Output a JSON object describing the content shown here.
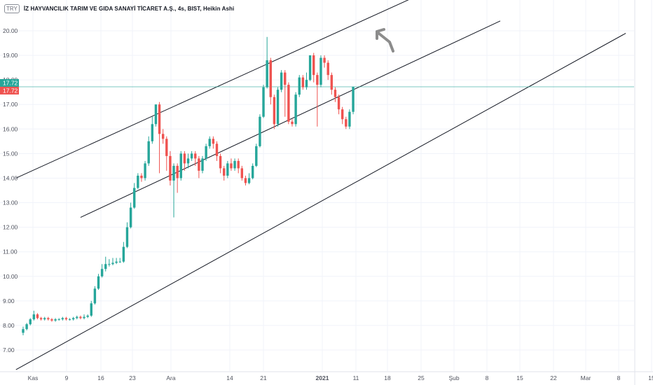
{
  "header": {
    "currency_badge": "TRY",
    "symbol_title": "İZ HAYVANCILIK TARIM VE GIDA SANAYİ TİCARET A.Ş., 4s, BIST, Heikin Ashi"
  },
  "colors": {
    "up": "#26a69a",
    "down": "#ef5350",
    "trendline": "#131722",
    "price_line": "#26a69a",
    "arrow": "#8c8c8c",
    "axis_text": "#50535e"
  },
  "price_tags": {
    "last": "17.72",
    "second": "17.72"
  },
  "chart_data": {
    "type": "candlestick",
    "style": "Heikin Ashi",
    "yscale": "linear",
    "ylim": [
      6.1,
      20.7
    ],
    "y_ticks": [
      "7.00",
      "8.00",
      "9.00",
      "10.00",
      "11.00",
      "12.00",
      "13.00",
      "14.00",
      "15.00",
      "16.00",
      "17.00",
      "18.00",
      "19.00",
      "20.00"
    ],
    "x_ticks": [
      "Kas",
      "9",
      "16",
      "23",
      "Ara",
      "14",
      "21",
      "2021",
      "11",
      "18",
      "25",
      "Şub",
      "8",
      "15",
      "22",
      "Mar",
      "8",
      "15"
    ],
    "last_price": 17.72,
    "candles": [
      [
        7.7,
        7.85,
        7.6,
        7.95
      ],
      [
        7.85,
        8.05,
        7.8,
        8.1
      ],
      [
        8.05,
        8.25,
        8.0,
        8.3
      ],
      [
        8.25,
        8.45,
        8.2,
        8.6
      ],
      [
        8.45,
        8.3,
        8.25,
        8.5
      ],
      [
        8.3,
        8.25,
        8.2,
        8.35
      ],
      [
        8.25,
        8.3,
        8.2,
        8.35
      ],
      [
        8.3,
        8.25,
        8.2,
        8.35
      ],
      [
        8.25,
        8.2,
        8.15,
        8.3
      ],
      [
        8.2,
        8.25,
        8.15,
        8.3
      ],
      [
        8.25,
        8.25,
        8.2,
        8.3
      ],
      [
        8.25,
        8.3,
        8.2,
        8.35
      ],
      [
        8.3,
        8.25,
        8.2,
        8.35
      ],
      [
        8.25,
        8.25,
        8.2,
        8.3
      ],
      [
        8.25,
        8.3,
        8.2,
        8.35
      ],
      [
        8.3,
        8.35,
        8.25,
        8.4
      ],
      [
        8.35,
        8.3,
        8.25,
        8.4
      ],
      [
        8.3,
        8.35,
        8.25,
        8.45
      ],
      [
        8.35,
        8.4,
        8.3,
        8.45
      ],
      [
        8.4,
        8.9,
        8.35,
        9.0
      ],
      [
        8.9,
        9.5,
        8.85,
        9.6
      ],
      [
        9.5,
        10.0,
        9.45,
        10.1
      ],
      [
        10.0,
        10.3,
        9.95,
        10.5
      ],
      [
        10.3,
        10.5,
        10.2,
        10.8
      ],
      [
        10.5,
        10.5,
        10.4,
        10.7
      ],
      [
        10.5,
        10.55,
        10.45,
        10.75
      ],
      [
        10.55,
        10.6,
        10.5,
        10.75
      ],
      [
        10.6,
        10.6,
        10.55,
        10.75
      ],
      [
        10.6,
        11.2,
        10.55,
        11.4
      ],
      [
        11.2,
        12.0,
        11.15,
        12.2
      ],
      [
        12.0,
        12.8,
        11.95,
        13.0
      ],
      [
        12.8,
        13.6,
        12.75,
        13.8
      ],
      [
        13.6,
        14.1,
        13.55,
        14.2
      ],
      [
        14.1,
        14.0,
        13.85,
        14.2
      ],
      [
        14.0,
        14.6,
        13.9,
        14.7
      ],
      [
        14.6,
        15.5,
        14.5,
        15.7
      ],
      [
        15.5,
        16.2,
        15.4,
        16.5
      ],
      [
        16.2,
        17.0,
        16.1,
        17.0
      ],
      [
        17.0,
        15.8,
        14.2,
        17.1
      ],
      [
        15.8,
        15.6,
        15.4,
        16.0
      ],
      [
        15.6,
        14.9,
        14.3,
        15.7
      ],
      [
        14.9,
        13.9,
        13.7,
        15.1
      ],
      [
        13.9,
        14.5,
        12.4,
        14.6
      ],
      [
        14.5,
        14.0,
        13.4,
        14.6
      ],
      [
        14.0,
        15.0,
        13.9,
        15.1
      ],
      [
        15.0,
        14.6,
        14.3,
        15.1
      ],
      [
        14.6,
        14.8,
        14.4,
        15.0
      ],
      [
        14.8,
        15.0,
        14.7,
        15.1
      ],
      [
        15.0,
        14.8,
        14.5,
        15.1
      ],
      [
        14.8,
        14.3,
        14.0,
        14.9
      ],
      [
        14.3,
        14.8,
        14.2,
        14.9
      ],
      [
        14.8,
        15.3,
        14.7,
        15.4
      ],
      [
        15.3,
        15.6,
        15.2,
        15.7
      ],
      [
        15.6,
        15.4,
        15.2,
        15.7
      ],
      [
        15.4,
        14.9,
        14.7,
        15.5
      ],
      [
        14.9,
        14.4,
        14.2,
        15.0
      ],
      [
        14.4,
        14.1,
        13.9,
        14.5
      ],
      [
        14.1,
        14.6,
        14.0,
        14.7
      ],
      [
        14.6,
        14.4,
        14.3,
        14.8
      ],
      [
        14.4,
        14.7,
        14.3,
        14.8
      ],
      [
        14.7,
        14.4,
        14.2,
        14.8
      ],
      [
        14.4,
        14.0,
        13.9,
        14.5
      ],
      [
        14.0,
        13.8,
        13.7,
        14.1
      ],
      [
        13.8,
        14.0,
        13.75,
        14.2
      ],
      [
        14.0,
        14.5,
        13.95,
        14.6
      ],
      [
        14.5,
        15.3,
        14.45,
        15.4
      ],
      [
        15.3,
        16.5,
        15.25,
        16.6
      ],
      [
        16.5,
        17.7,
        16.45,
        17.8
      ],
      [
        17.7,
        18.8,
        17.65,
        19.75
      ],
      [
        18.8,
        17.3,
        17.0,
        18.9
      ],
      [
        17.3,
        16.2,
        16.0,
        17.4
      ],
      [
        16.2,
        17.6,
        16.1,
        17.7
      ],
      [
        17.6,
        18.3,
        17.5,
        18.4
      ],
      [
        18.3,
        17.8,
        16.5,
        18.4
      ],
      [
        17.8,
        16.3,
        16.2,
        17.9
      ],
      [
        16.3,
        16.2,
        16.1,
        16.4
      ],
      [
        16.2,
        17.4,
        16.1,
        17.5
      ],
      [
        17.4,
        18.1,
        17.3,
        18.2
      ],
      [
        18.1,
        17.7,
        17.6,
        18.2
      ],
      [
        17.7,
        18.0,
        17.6,
        18.3
      ],
      [
        18.0,
        19.0,
        17.95,
        19.0
      ],
      [
        19.0,
        18.2,
        17.9,
        19.1
      ],
      [
        18.2,
        17.8,
        16.1,
        18.3
      ],
      [
        17.8,
        18.9,
        17.7,
        19.0
      ],
      [
        18.9,
        18.7,
        18.5,
        19.0
      ],
      [
        18.7,
        18.2,
        18.0,
        18.8
      ],
      [
        18.2,
        17.6,
        17.4,
        18.3
      ],
      [
        17.6,
        17.3,
        17.1,
        17.7
      ],
      [
        17.3,
        16.8,
        16.6,
        17.4
      ],
      [
        16.8,
        16.4,
        16.2,
        16.9
      ],
      [
        16.4,
        16.1,
        16.0,
        16.5
      ],
      [
        16.1,
        16.7,
        16.0,
        16.8
      ],
      [
        16.7,
        17.72,
        16.6,
        17.72
      ]
    ],
    "trendlines": [
      {
        "from": {
          "bar": -2,
          "price": 14.0
        },
        "to": {
          "bar": 108,
          "price": 21.3
        }
      },
      {
        "from": {
          "bar": 16,
          "price": 12.4
        },
        "to": {
          "bar": 133,
          "price": 20.4
        }
      },
      {
        "from": {
          "bar": -2,
          "price": 6.2
        },
        "to": {
          "bar": 168,
          "price": 19.9
        }
      }
    ],
    "annotation": {
      "type": "arrow",
      "direction": "up-left",
      "bar": 133,
      "price": 19.5
    }
  }
}
